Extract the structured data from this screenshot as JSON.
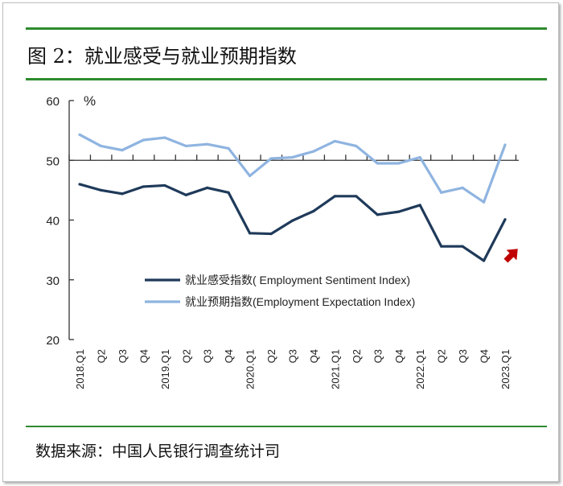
{
  "title": "图 2：就业感受与就业预期指数",
  "source": "数据来源：中国人民银行调查统计司",
  "chart_data": {
    "type": "line",
    "title": "图 2：就业感受与就业预期指数",
    "ylabel": "%",
    "ylim": [
      20,
      60
    ],
    "yticks": [
      20,
      30,
      40,
      50,
      60
    ],
    "x_axis_crosses_at": 50,
    "categories": [
      "2018.Q1",
      "Q2",
      "Q3",
      "Q4",
      "2019.Q1",
      "Q2",
      "Q3",
      "Q4",
      "2020.Q1",
      "Q2",
      "Q3",
      "Q4",
      "2021.Q1",
      "Q2",
      "Q3",
      "Q4",
      "2022.Q1",
      "Q2",
      "Q3",
      "Q4",
      "2023.Q1"
    ],
    "series": [
      {
        "name": "就业感受指数( Employment Sentiment Index)",
        "color": "#1f3a5a",
        "values": [
          46.0,
          45.0,
          44.4,
          45.6,
          45.8,
          44.2,
          45.4,
          44.6,
          37.8,
          37.7,
          39.9,
          41.5,
          44.0,
          44.0,
          40.9,
          41.4,
          42.5,
          35.6,
          35.6,
          33.2,
          40.1
        ]
      },
      {
        "name": "就业预期指数(Employment Expectation Index)",
        "color": "#8fb4e0",
        "values": [
          54.3,
          52.4,
          51.7,
          53.4,
          53.8,
          52.4,
          52.7,
          52.0,
          47.4,
          50.3,
          50.5,
          51.5,
          53.2,
          52.4,
          49.5,
          49.5,
          50.5,
          44.6,
          45.4,
          43.0,
          52.6
        ]
      }
    ],
    "annotation": {
      "type": "arrow",
      "color": "#c00000",
      "direction": "up-right"
    },
    "legend": "center-right",
    "grid": false
  }
}
